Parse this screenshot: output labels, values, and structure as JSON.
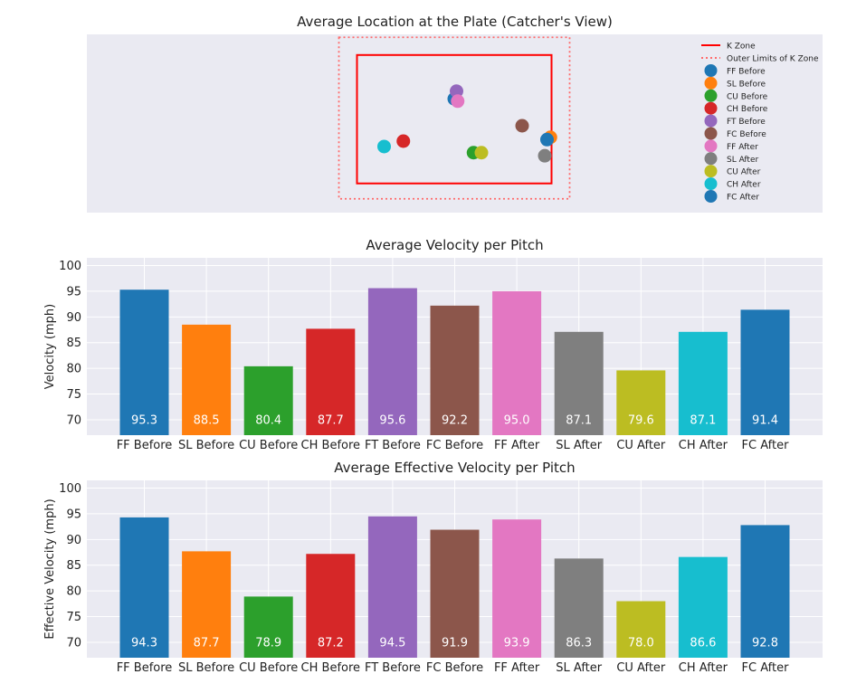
{
  "colors": {
    "plot_bg": "#eaeaf2",
    "grid": "#ffffff",
    "k_zone": "#ff0000",
    "outer_zone": "#ff6b6b"
  },
  "chart_data": [
    {
      "type": "scatter",
      "title": "Average Location at the Plate (Catcher's View)",
      "xlabel": "",
      "ylabel": "",
      "grid": false,
      "legend_position": "right",
      "zone_lines": [
        {
          "name": "K Zone",
          "color": "#ff0000",
          "style": "solid"
        },
        {
          "name": "Outer Limits of K Zone",
          "color": "#ff6b6b",
          "style": "dotted"
        }
      ],
      "series": [
        {
          "name": "FF Before",
          "color": "#1f77b4",
          "x": 0.0,
          "y": 2.95
        },
        {
          "name": "SL Before",
          "color": "#ff7f0e",
          "x": 0.85,
          "y": 2.45
        },
        {
          "name": "CU Before",
          "color": "#2ca02c",
          "x": 0.17,
          "y": 2.25
        },
        {
          "name": "CH Before",
          "color": "#d62728",
          "x": -0.45,
          "y": 2.4
        },
        {
          "name": "FT Before",
          "color": "#9467bd",
          "x": 0.02,
          "y": 3.05
        },
        {
          "name": "FC Before",
          "color": "#8c564b",
          "x": 0.6,
          "y": 2.6
        },
        {
          "name": "FF After",
          "color": "#e377c2",
          "x": 0.03,
          "y": 2.92
        },
        {
          "name": "SL After",
          "color": "#7f7f7f",
          "x": 0.8,
          "y": 2.21
        },
        {
          "name": "CU After",
          "color": "#bcbd22",
          "x": 0.24,
          "y": 2.25
        },
        {
          "name": "CH After",
          "color": "#17becf",
          "x": -0.62,
          "y": 2.33
        },
        {
          "name": "FC After",
          "color": "#1f77b4",
          "x": 0.82,
          "y": 2.42
        }
      ]
    },
    {
      "type": "bar",
      "title": "Average Velocity per Pitch",
      "xlabel": "",
      "ylabel": "Velocity (mph)",
      "ylim": [
        67,
        101.5
      ],
      "yticks": [
        70,
        75,
        80,
        85,
        90,
        95,
        100
      ],
      "grid": true,
      "categories": [
        "FF Before",
        "SL Before",
        "CU Before",
        "CH Before",
        "FT Before",
        "FC Before",
        "FF After",
        "SL After",
        "CU After",
        "CH After",
        "FC After"
      ],
      "values": [
        95.3,
        88.5,
        80.4,
        87.7,
        95.6,
        92.2,
        95.0,
        87.1,
        79.6,
        87.1,
        91.4
      ],
      "value_labels": [
        "95.3",
        "88.5",
        "80.4",
        "87.7",
        "95.6",
        "92.2",
        "95.0",
        "87.1",
        "79.6",
        "87.1",
        "91.4"
      ],
      "colors": [
        "#1f77b4",
        "#ff7f0e",
        "#2ca02c",
        "#d62728",
        "#9467bd",
        "#8c564b",
        "#e377c2",
        "#7f7f7f",
        "#bcbd22",
        "#17becf",
        "#1f77b4"
      ]
    },
    {
      "type": "bar",
      "title": "Average Effective Velocity per Pitch",
      "xlabel": "",
      "ylabel": "Effective Velocity (mph)",
      "ylim": [
        67,
        101.5
      ],
      "yticks": [
        70,
        75,
        80,
        85,
        90,
        95,
        100
      ],
      "grid": true,
      "categories": [
        "FF Before",
        "SL Before",
        "CU Before",
        "CH Before",
        "FT Before",
        "FC Before",
        "FF After",
        "SL After",
        "CU After",
        "CH After",
        "FC After"
      ],
      "values": [
        94.3,
        87.7,
        78.9,
        87.2,
        94.5,
        91.9,
        93.9,
        86.3,
        78.0,
        86.6,
        92.8
      ],
      "value_labels": [
        "94.3",
        "87.7",
        "78.9",
        "87.2",
        "94.5",
        "91.9",
        "93.9",
        "86.3",
        "78.0",
        "86.6",
        "92.8"
      ],
      "colors": [
        "#1f77b4",
        "#ff7f0e",
        "#2ca02c",
        "#d62728",
        "#9467bd",
        "#8c564b",
        "#e377c2",
        "#7f7f7f",
        "#bcbd22",
        "#17becf",
        "#1f77b4"
      ]
    }
  ]
}
